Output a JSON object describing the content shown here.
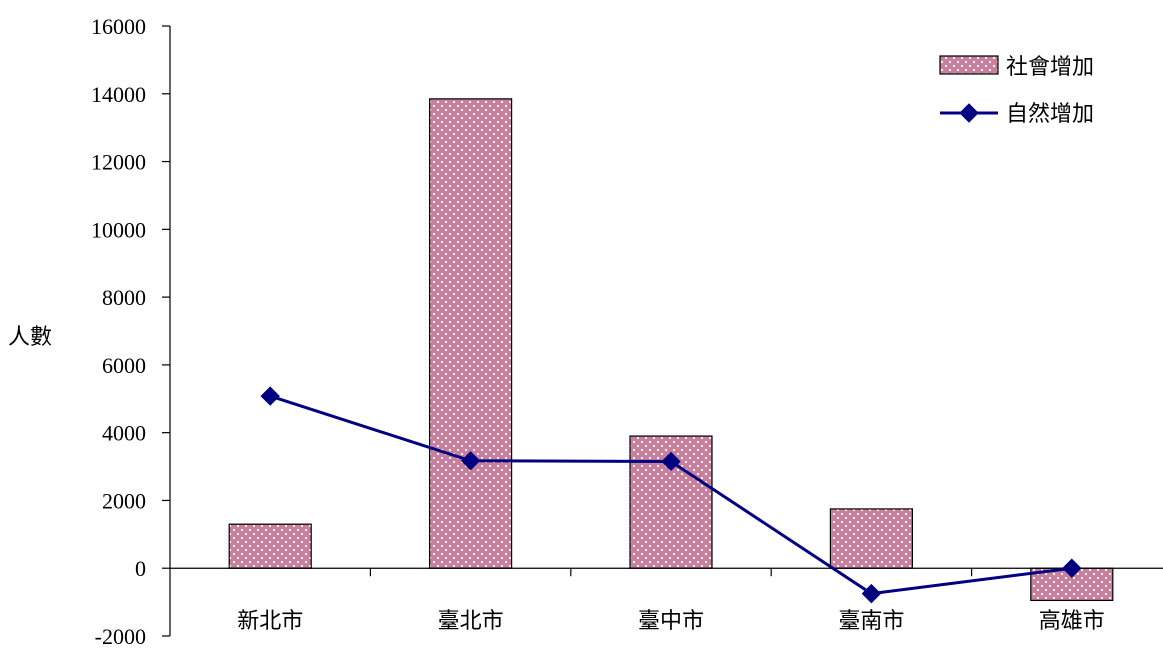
{
  "chart_data": {
    "type": "bar",
    "title": "",
    "xlabel": "",
    "ylabel": "人數",
    "ylim": [
      -2000,
      16000
    ],
    "ytick_step": 2000,
    "grid": false,
    "legend_position": "top-right",
    "categories": [
      "新北市",
      "臺北市",
      "臺中市",
      "臺南市",
      "高雄市"
    ],
    "series": [
      {
        "name": "社會增加",
        "type": "bar",
        "color": "#c8809c",
        "values": [
          1300,
          13850,
          3900,
          1750,
          -950
        ]
      },
      {
        "name": "自然增加",
        "type": "line",
        "color": "#000080",
        "marker": "diamond",
        "values": [
          5080,
          3170,
          3150,
          -750,
          0
        ]
      }
    ]
  }
}
